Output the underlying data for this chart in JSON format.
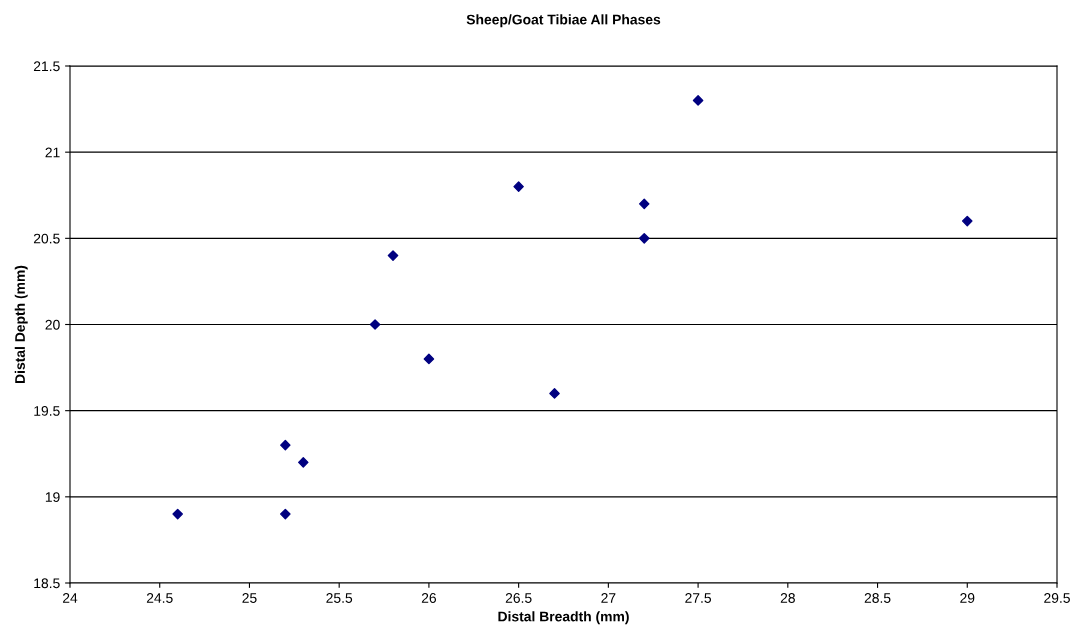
{
  "chart_data": {
    "type": "scatter",
    "title": "Sheep/Goat Tibiae All Phases",
    "xlabel": "Distal Breadth (mm)",
    "ylabel": "Distal Depth (mm)",
    "x": [
      24.6,
      25.2,
      25.3,
      25.2,
      25.7,
      25.8,
      26.0,
      26.5,
      26.7,
      27.2,
      27.2,
      27.5,
      29.0
    ],
    "series": [
      {
        "color": "#000080",
        "values": [
          18.9,
          19.3,
          19.2,
          18.9,
          20.0,
          20.4,
          19.8,
          20.8,
          19.6,
          20.7,
          20.5,
          21.3,
          20.6
        ]
      }
    ],
    "xlim": [
      24,
      29.5
    ],
    "xticks": [
      24,
      24.5,
      25,
      25.5,
      26,
      26.5,
      27,
      27.5,
      28,
      28.5,
      29,
      29.5
    ],
    "ylim": [
      18.5,
      21.5
    ],
    "yticks": [
      18.5,
      19,
      19.5,
      20,
      20.5,
      21,
      21.5
    ],
    "grid": "y",
    "marker": "diamond",
    "legend": false
  }
}
